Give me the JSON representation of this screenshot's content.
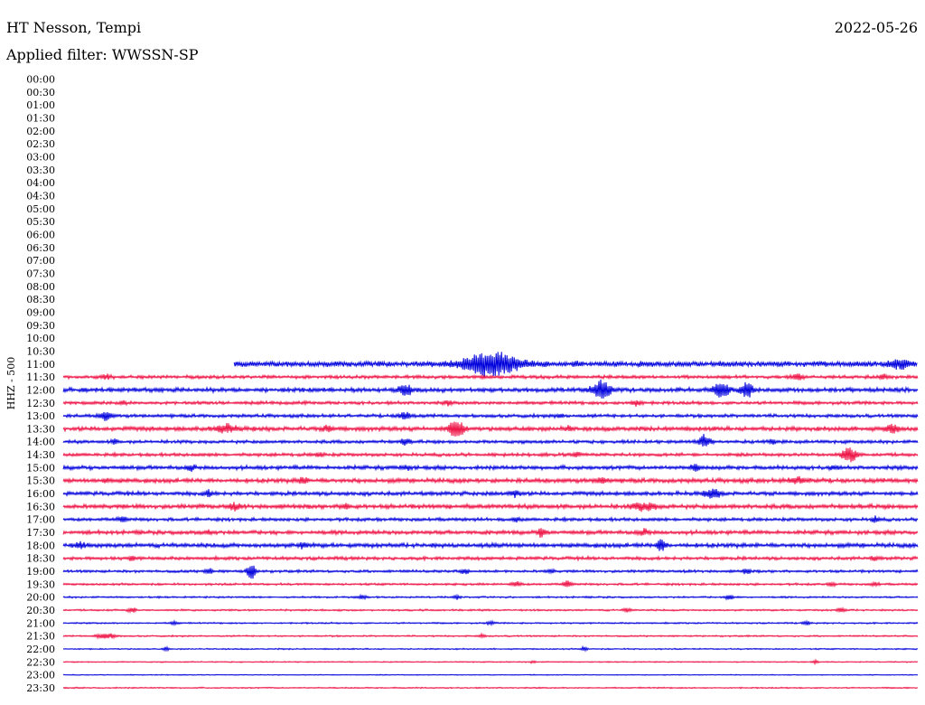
{
  "header": {
    "station": "HT Nesson, Tempi",
    "date": "2022-05-26",
    "filter_label": "Applied filter: WWSSN-SP"
  },
  "chart_data": {
    "type": "line",
    "title": "",
    "ylabel": "HHZ - 500",
    "xlabel": "",
    "grid": false,
    "colors": {
      "odd_rows": "#0000dd",
      "even_rows": "#ee1144"
    },
    "row_labels": [
      "00:00",
      "00:30",
      "01:00",
      "01:30",
      "02:00",
      "02:30",
      "03:00",
      "03:30",
      "04:00",
      "04:30",
      "05:00",
      "05:30",
      "06:00",
      "06:30",
      "07:00",
      "07:30",
      "08:00",
      "08:30",
      "09:00",
      "09:30",
      "10:00",
      "10:30",
      "11:00",
      "11:30",
      "12:00",
      "12:30",
      "13:00",
      "13:30",
      "14:00",
      "14:30",
      "15:00",
      "15:30",
      "16:00",
      "16:30",
      "17:00",
      "17:30",
      "18:00",
      "18:30",
      "19:00",
      "19:30",
      "20:00",
      "20:30",
      "21:00",
      "21:30",
      "22:00",
      "22:30",
      "23:00",
      "23:30"
    ],
    "first_data_row": 22,
    "first_row_start_fraction": 0.2,
    "rows": [
      {
        "row": 22,
        "label": "11:00",
        "noise": 2.5,
        "events": [
          [
            0.5,
            12,
            30
          ],
          [
            0.6,
            2,
            4
          ],
          [
            0.98,
            5,
            10
          ]
        ]
      },
      {
        "row": 23,
        "label": "11:30",
        "noise": 1.5,
        "events": [
          [
            0.05,
            2,
            5
          ],
          [
            0.86,
            3,
            6
          ],
          [
            0.96,
            2,
            6
          ]
        ]
      },
      {
        "row": 24,
        "label": "12:00",
        "noise": 2,
        "events": [
          [
            0.4,
            6,
            7
          ],
          [
            0.63,
            10,
            10
          ],
          [
            0.77,
            7,
            9
          ],
          [
            0.8,
            9,
            6
          ]
        ]
      },
      {
        "row": 25,
        "label": "12:30",
        "noise": 1.5,
        "events": [
          [
            0.07,
            2,
            3
          ],
          [
            0.45,
            2,
            4
          ],
          [
            0.67,
            3,
            6
          ]
        ]
      },
      {
        "row": 26,
        "label": "13:00",
        "noise": 1.5,
        "events": [
          [
            0.05,
            5,
            6
          ],
          [
            0.4,
            4,
            6
          ],
          [
            0.58,
            2,
            5
          ]
        ]
      },
      {
        "row": 27,
        "label": "13:30",
        "noise": 2,
        "events": [
          [
            0.19,
            4,
            12
          ],
          [
            0.31,
            3,
            5
          ],
          [
            0.46,
            10,
            8
          ],
          [
            0.59,
            2,
            5
          ],
          [
            0.97,
            4,
            7
          ]
        ]
      },
      {
        "row": 28,
        "label": "14:00",
        "noise": 1.5,
        "events": [
          [
            0.06,
            2,
            4
          ],
          [
            0.4,
            3,
            5
          ],
          [
            0.75,
            7,
            6
          ],
          [
            0.83,
            2,
            4
          ]
        ]
      },
      {
        "row": 29,
        "label": "14:30",
        "noise": 1.5,
        "events": [
          [
            0.3,
            2,
            5
          ],
          [
            0.6,
            2,
            5
          ],
          [
            0.92,
            8,
            8
          ]
        ]
      },
      {
        "row": 30,
        "label": "15:00",
        "noise": 1.8,
        "events": [
          [
            0.15,
            3,
            4
          ],
          [
            0.4,
            2,
            5
          ],
          [
            0.74,
            3,
            5
          ],
          [
            0.9,
            2,
            4
          ]
        ]
      },
      {
        "row": 31,
        "label": "15:30",
        "noise": 2,
        "events": [
          [
            0.05,
            2,
            4
          ],
          [
            0.28,
            3,
            5
          ],
          [
            0.63,
            3,
            5
          ],
          [
            0.86,
            3,
            10
          ]
        ]
      },
      {
        "row": 32,
        "label": "16:00",
        "noise": 1.8,
        "events": [
          [
            0.17,
            3,
            5
          ],
          [
            0.53,
            3,
            5
          ],
          [
            0.76,
            5,
            8
          ]
        ]
      },
      {
        "row": 33,
        "label": "16:30",
        "noise": 2,
        "events": [
          [
            0.2,
            3,
            6
          ],
          [
            0.33,
            3,
            4
          ],
          [
            0.68,
            4,
            12
          ]
        ]
      },
      {
        "row": 34,
        "label": "17:00",
        "noise": 1.5,
        "events": [
          [
            0.07,
            3,
            4
          ],
          [
            0.53,
            2,
            4
          ],
          [
            0.95,
            3,
            4
          ]
        ]
      },
      {
        "row": 35,
        "label": "17:30",
        "noise": 1.8,
        "events": [
          [
            0.17,
            2,
            4
          ],
          [
            0.56,
            4,
            5
          ],
          [
            0.68,
            3,
            5
          ]
        ]
      },
      {
        "row": 36,
        "label": "18:00",
        "noise": 2,
        "events": [
          [
            0.02,
            3,
            5
          ],
          [
            0.28,
            3,
            4
          ],
          [
            0.7,
            6,
            5
          ]
        ]
      },
      {
        "row": 37,
        "label": "18:30",
        "noise": 1.5,
        "events": [
          [
            0.08,
            2,
            4
          ],
          [
            0.95,
            2,
            4
          ]
        ]
      },
      {
        "row": 38,
        "label": "19:00",
        "noise": 1.2,
        "events": [
          [
            0.17,
            3,
            4
          ],
          [
            0.22,
            8,
            5
          ],
          [
            0.47,
            3,
            4
          ],
          [
            0.57,
            2,
            4
          ],
          [
            0.8,
            3,
            4
          ]
        ]
      },
      {
        "row": 39,
        "label": "19:30",
        "noise": 1,
        "events": [
          [
            0.53,
            3,
            5
          ],
          [
            0.59,
            3,
            5
          ],
          [
            0.9,
            2,
            4
          ],
          [
            0.95,
            2,
            4
          ]
        ]
      },
      {
        "row": 40,
        "label": "20:00",
        "noise": 0.8,
        "events": [
          [
            0.35,
            2,
            5
          ],
          [
            0.46,
            2,
            4
          ],
          [
            0.78,
            3,
            4
          ]
        ]
      },
      {
        "row": 41,
        "label": "20:30",
        "noise": 0.8,
        "events": [
          [
            0.08,
            3,
            4
          ],
          [
            0.66,
            2,
            4
          ],
          [
            0.91,
            2,
            5
          ]
        ]
      },
      {
        "row": 42,
        "label": "21:00",
        "noise": 0.7,
        "events": [
          [
            0.13,
            2,
            4
          ],
          [
            0.5,
            2,
            4
          ],
          [
            0.87,
            2,
            4
          ]
        ]
      },
      {
        "row": 43,
        "label": "21:30",
        "noise": 0.7,
        "events": [
          [
            0.05,
            3,
            10
          ],
          [
            0.49,
            2,
            3
          ]
        ]
      },
      {
        "row": 44,
        "label": "22:00",
        "noise": 0.6,
        "events": [
          [
            0.12,
            2,
            3
          ],
          [
            0.61,
            3,
            3
          ]
        ]
      },
      {
        "row": 45,
        "label": "22:30",
        "noise": 0.5,
        "events": [
          [
            0.55,
            1,
            4
          ],
          [
            0.88,
            2,
            3
          ]
        ]
      },
      {
        "row": 46,
        "label": "23:00",
        "noise": 0.4,
        "events": []
      },
      {
        "row": 47,
        "label": "23:30",
        "noise": 0.6,
        "events": []
      }
    ]
  }
}
